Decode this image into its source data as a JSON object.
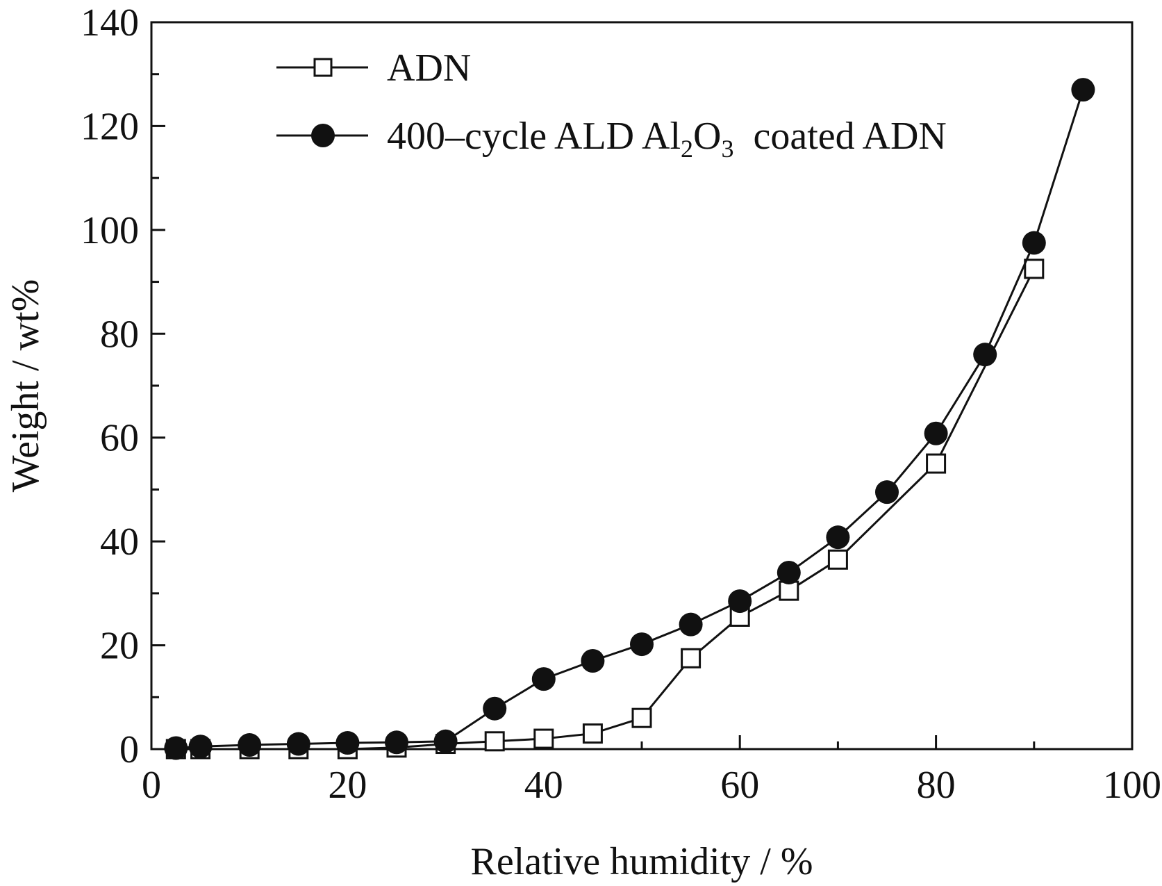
{
  "chart_data": {
    "type": "line",
    "title": "",
    "xlabel": "Relative humidity / %",
    "ylabel": "Weight / wt%",
    "xlim": [
      0,
      100
    ],
    "ylim": [
      0,
      140
    ],
    "xticks": [
      0,
      20,
      40,
      60,
      80,
      100
    ],
    "yticks": [
      0,
      20,
      40,
      60,
      80,
      100,
      120,
      140
    ],
    "grid": false,
    "legend_position": "top-left",
    "series": [
      {
        "name": "ADN",
        "marker": "open-square",
        "color": "#111111",
        "x": [
          2.5,
          5,
          10,
          15,
          20,
          25,
          30,
          35,
          40,
          45,
          50,
          55,
          60,
          65,
          70,
          80,
          90
        ],
        "y": [
          0,
          0,
          0,
          0,
          0,
          0.3,
          1,
          1.5,
          2,
          3,
          6,
          17.5,
          25.5,
          30.5,
          36.5,
          55,
          92.5
        ]
      },
      {
        "name_prefix": "400–cycle ALD Al",
        "name_sub1": "2",
        "name_mid": "O",
        "name_sub2": "3",
        "name_suffix": "  coated ADN",
        "marker": "filled-circle",
        "color": "#111111",
        "x": [
          2.5,
          5,
          10,
          15,
          20,
          25,
          30,
          35,
          40,
          45,
          50,
          55,
          60,
          65,
          70,
          75,
          80,
          85,
          90,
          95
        ],
        "y": [
          0.2,
          0.5,
          0.8,
          1,
          1.2,
          1.3,
          1.5,
          7.8,
          13.5,
          17,
          20.2,
          24,
          28.5,
          34,
          40.8,
          49.5,
          60.8,
          76,
          97.5,
          127
        ]
      }
    ]
  }
}
